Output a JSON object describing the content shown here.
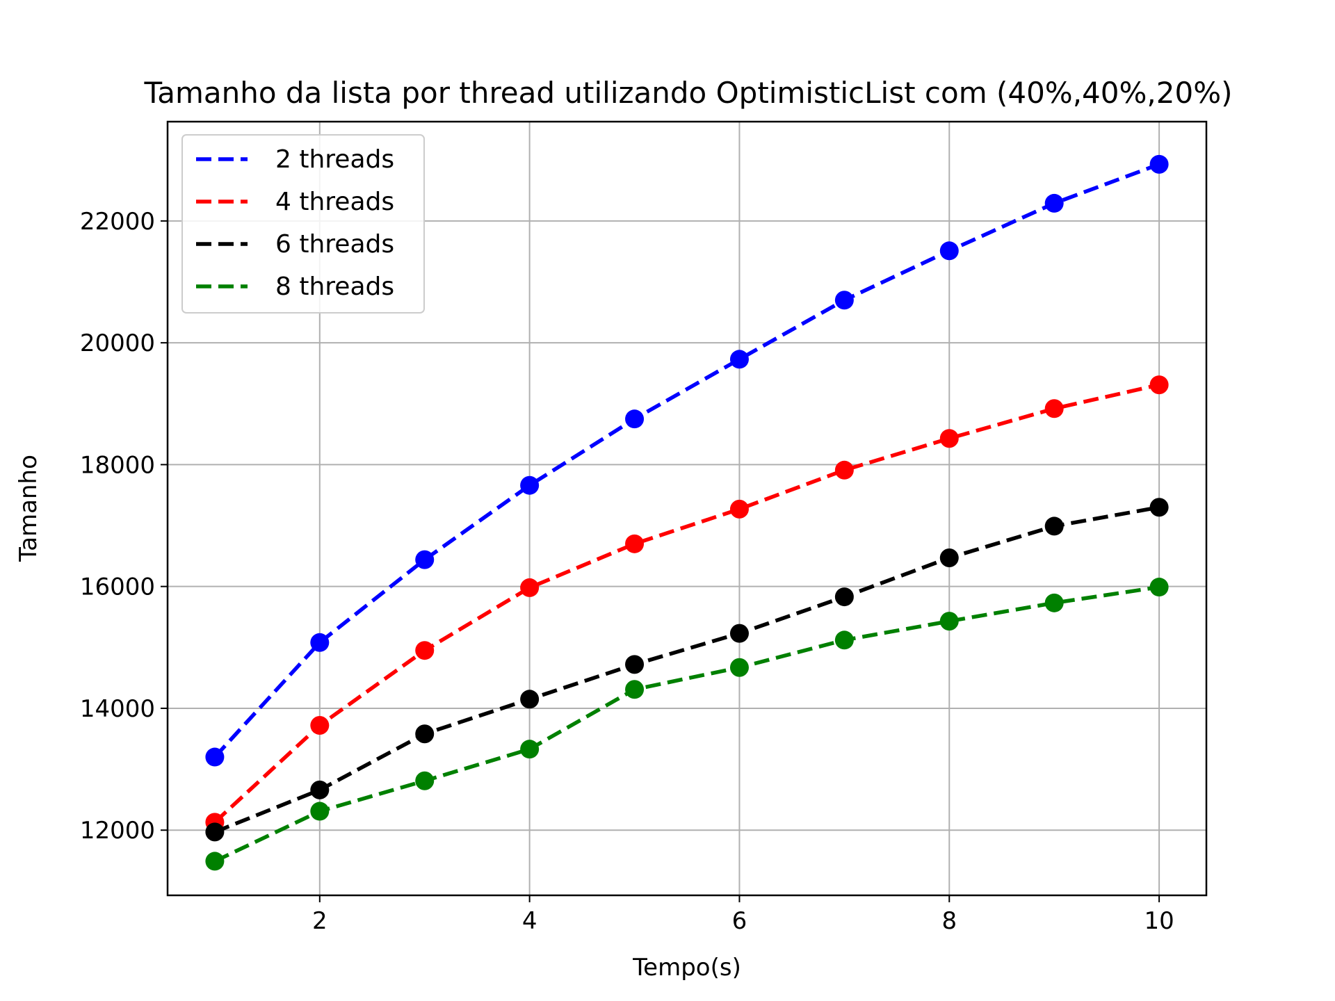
{
  "chart_data": {
    "type": "line",
    "title": "Tamanho da lista por thread utilizando OptimisticList com (40%,40%,20%)",
    "xlabel": "Tempo(s)",
    "ylabel": "Tamanho",
    "x": [
      1,
      2,
      3,
      4,
      5,
      6,
      7,
      8,
      9,
      10
    ],
    "xlim": [
      0.55,
      10.45
    ],
    "ylim": [
      10930,
      23630
    ],
    "xticks": [
      2,
      4,
      6,
      8,
      10
    ],
    "yticks": [
      12000,
      14000,
      16000,
      18000,
      20000,
      22000
    ],
    "grid": true,
    "legend_position": "upper-left",
    "series": [
      {
        "name": "2 threads",
        "color": "#0000ff",
        "values": [
          13200,
          15080,
          16440,
          17660,
          18750,
          19730,
          20700,
          21510,
          22290,
          22930
        ]
      },
      {
        "name": "4 threads",
        "color": "#ff0000",
        "values": [
          12130,
          13720,
          14950,
          15980,
          16700,
          17270,
          17910,
          18430,
          18920,
          19310
        ]
      },
      {
        "name": "6 threads",
        "color": "#000000",
        "values": [
          11970,
          12660,
          13580,
          14150,
          14720,
          15230,
          15830,
          16470,
          16990,
          17300
        ]
      },
      {
        "name": "8 threads",
        "color": "#008000",
        "values": [
          11490,
          12310,
          12810,
          13330,
          14310,
          14670,
          15120,
          15430,
          15730,
          15990
        ]
      }
    ]
  }
}
